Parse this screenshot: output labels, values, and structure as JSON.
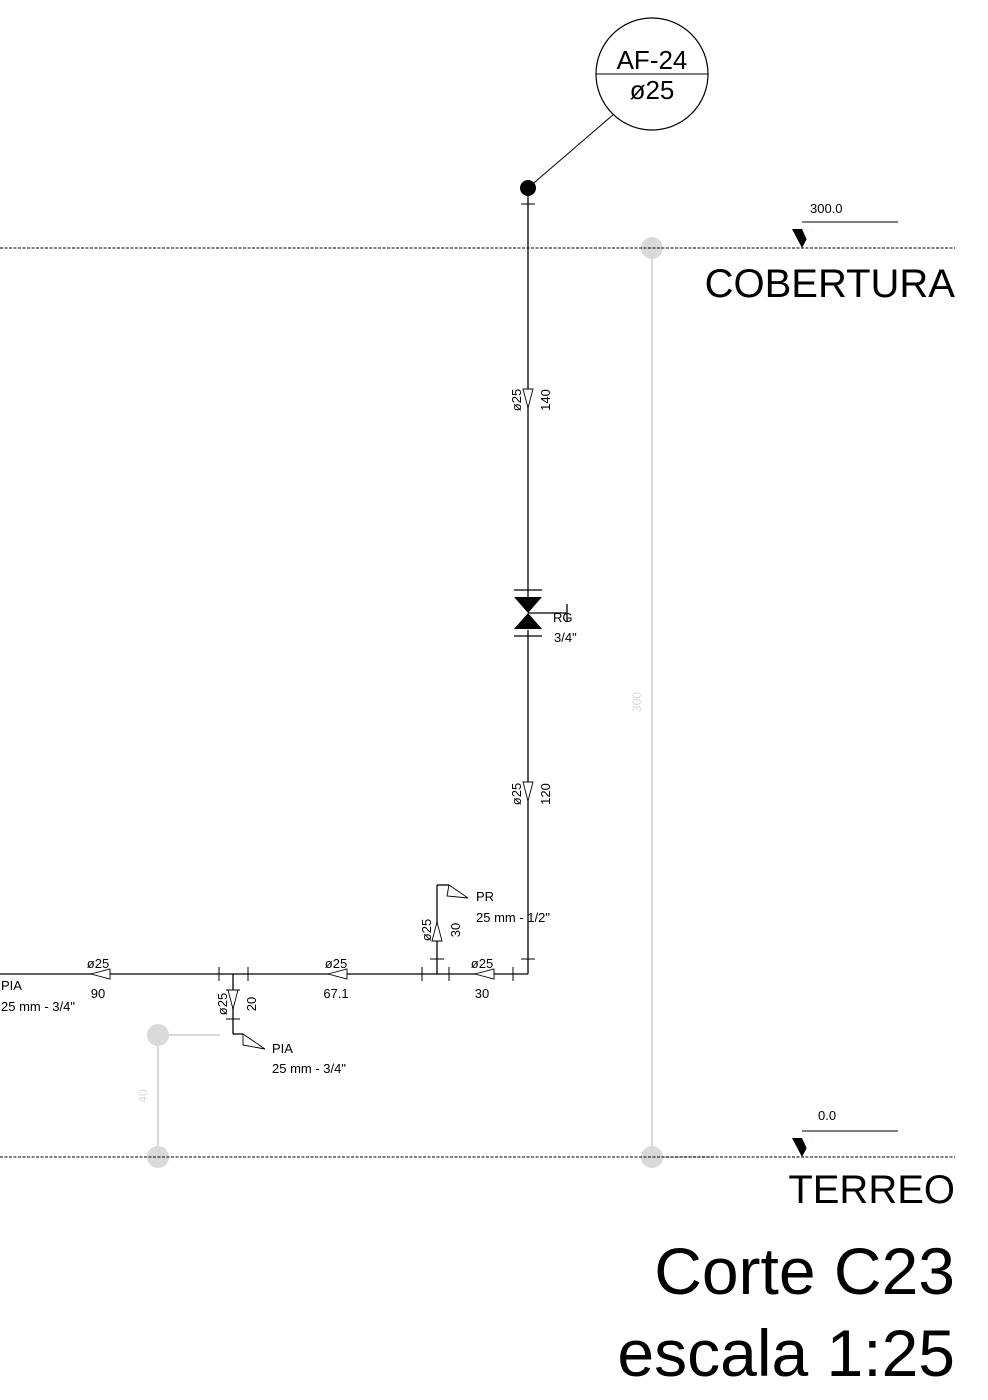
{
  "tag": {
    "id": "AF-24",
    "diameter": "ø25"
  },
  "levels": {
    "top": {
      "name": "COBERTURA",
      "elevation": "300.0"
    },
    "bottom": {
      "name": "TERREO",
      "elevation": "0.0"
    }
  },
  "title": {
    "line1": "Corte C23",
    "line2": "escala 1:25"
  },
  "vertical_dims": {
    "main": "300",
    "left": "40"
  },
  "valve": {
    "code": "RG",
    "size": "3/4\""
  },
  "segments": [
    {
      "diameter": "ø25",
      "length": "140"
    },
    {
      "diameter": "ø25",
      "length": "120"
    },
    {
      "diameter": "ø25",
      "length": "30"
    },
    {
      "diameter": "ø25",
      "length": "90"
    },
    {
      "diameter": "ø25",
      "length": "67.1"
    },
    {
      "diameter": "ø25",
      "length": "30"
    },
    {
      "diameter": "ø25",
      "length": "20"
    }
  ],
  "fixtures": [
    {
      "code": "PR",
      "spec": "25 mm - 1/2\""
    },
    {
      "code": "PIA",
      "spec": "25 mm - 3/4\""
    },
    {
      "code": "PIA",
      "spec": "25 mm - 3/4\""
    }
  ]
}
